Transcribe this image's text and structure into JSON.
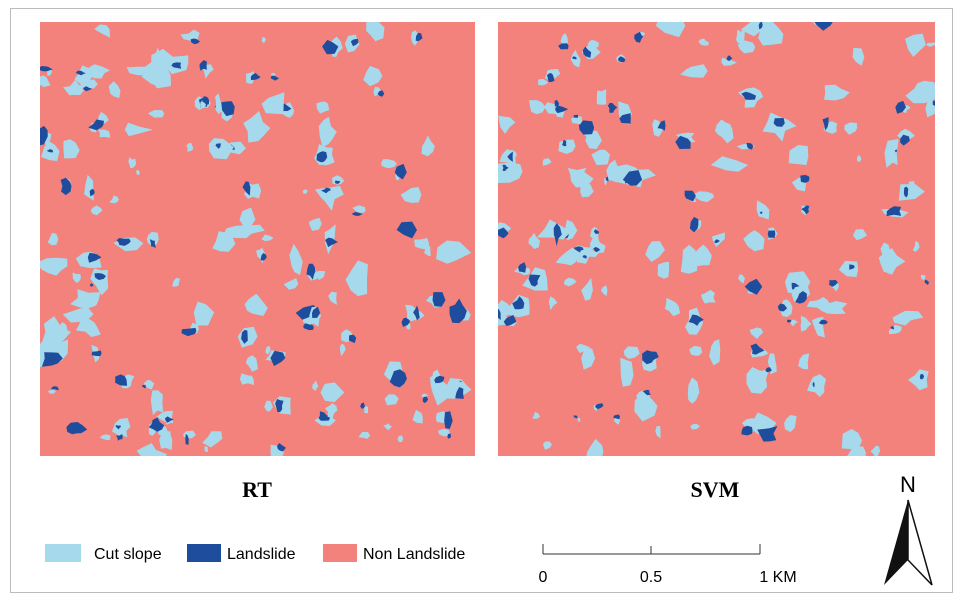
{
  "panels": [
    {
      "label": "RT"
    },
    {
      "label": "SVM"
    }
  ],
  "legend": {
    "items": [
      {
        "label": "Cut slope"
      },
      {
        "label": "Landslide"
      },
      {
        "label": "Non Landslide"
      }
    ]
  },
  "scale_bar": {
    "labels": [
      "0",
      "0.5",
      "1 KM"
    ]
  },
  "north_arrow": {
    "label": "N"
  }
}
